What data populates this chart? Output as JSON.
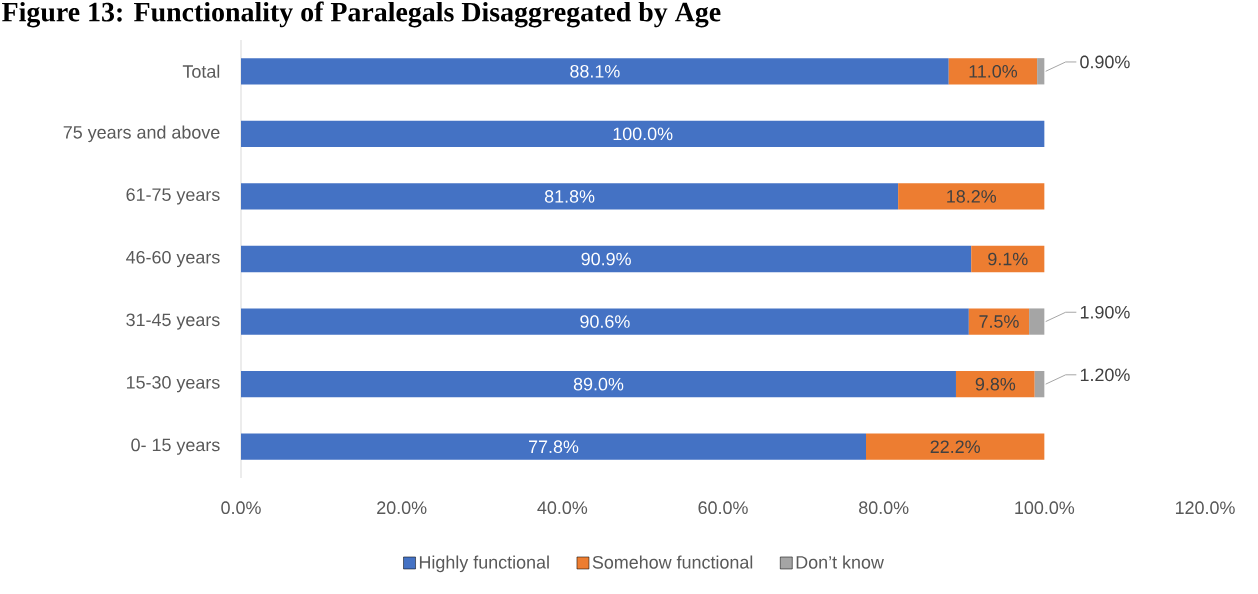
{
  "chart_data": {
    "type": "bar",
    "orientation": "horizontal",
    "stacked": true,
    "title": "Figure 13: Functionality of Paralegals Disaggregated by Age",
    "categories": [
      "Total",
      "75 years and above",
      "61-75 years",
      "46-60 years",
      "31-45 years",
      "15-30 years",
      "0- 15 years"
    ],
    "series": [
      {
        "name": "Highly functional",
        "color": "#4472c4",
        "values": [
          88.1,
          100.0,
          81.8,
          90.9,
          90.6,
          89.0,
          77.8
        ],
        "value_labels": [
          "88.1%",
          "100.0%",
          "81.8%",
          "90.9%",
          "90.6%",
          "89.0%",
          "77.8%"
        ]
      },
      {
        "name": "Somehow functional",
        "color": "#ed7d31",
        "values": [
          11.0,
          null,
          18.2,
          9.1,
          7.5,
          9.8,
          22.2
        ],
        "value_labels": [
          "11.0%",
          null,
          "18.2%",
          "9.1%",
          "7.5%",
          "9.8%",
          "22.2%"
        ]
      },
      {
        "name": "Don’t know",
        "color": "#a5a5a5",
        "values": [
          0.9,
          null,
          null,
          null,
          1.9,
          1.2,
          null
        ],
        "value_labels": [
          "0.90%",
          null,
          null,
          null,
          "1.90%",
          "1.20%",
          null
        ]
      }
    ],
    "xlim": [
      0,
      120
    ],
    "xticks": [
      {
        "value": 0,
        "label": "0.0%"
      },
      {
        "value": 20,
        "label": "20.0%"
      },
      {
        "value": 40,
        "label": "40.0%"
      },
      {
        "value": 60,
        "label": "60.0%"
      },
      {
        "value": 80,
        "label": "80.0%"
      },
      {
        "value": 100,
        "label": "100.0%"
      },
      {
        "value": 120,
        "label": "120.0%"
      }
    ],
    "grid": false,
    "legend": "bottom"
  }
}
